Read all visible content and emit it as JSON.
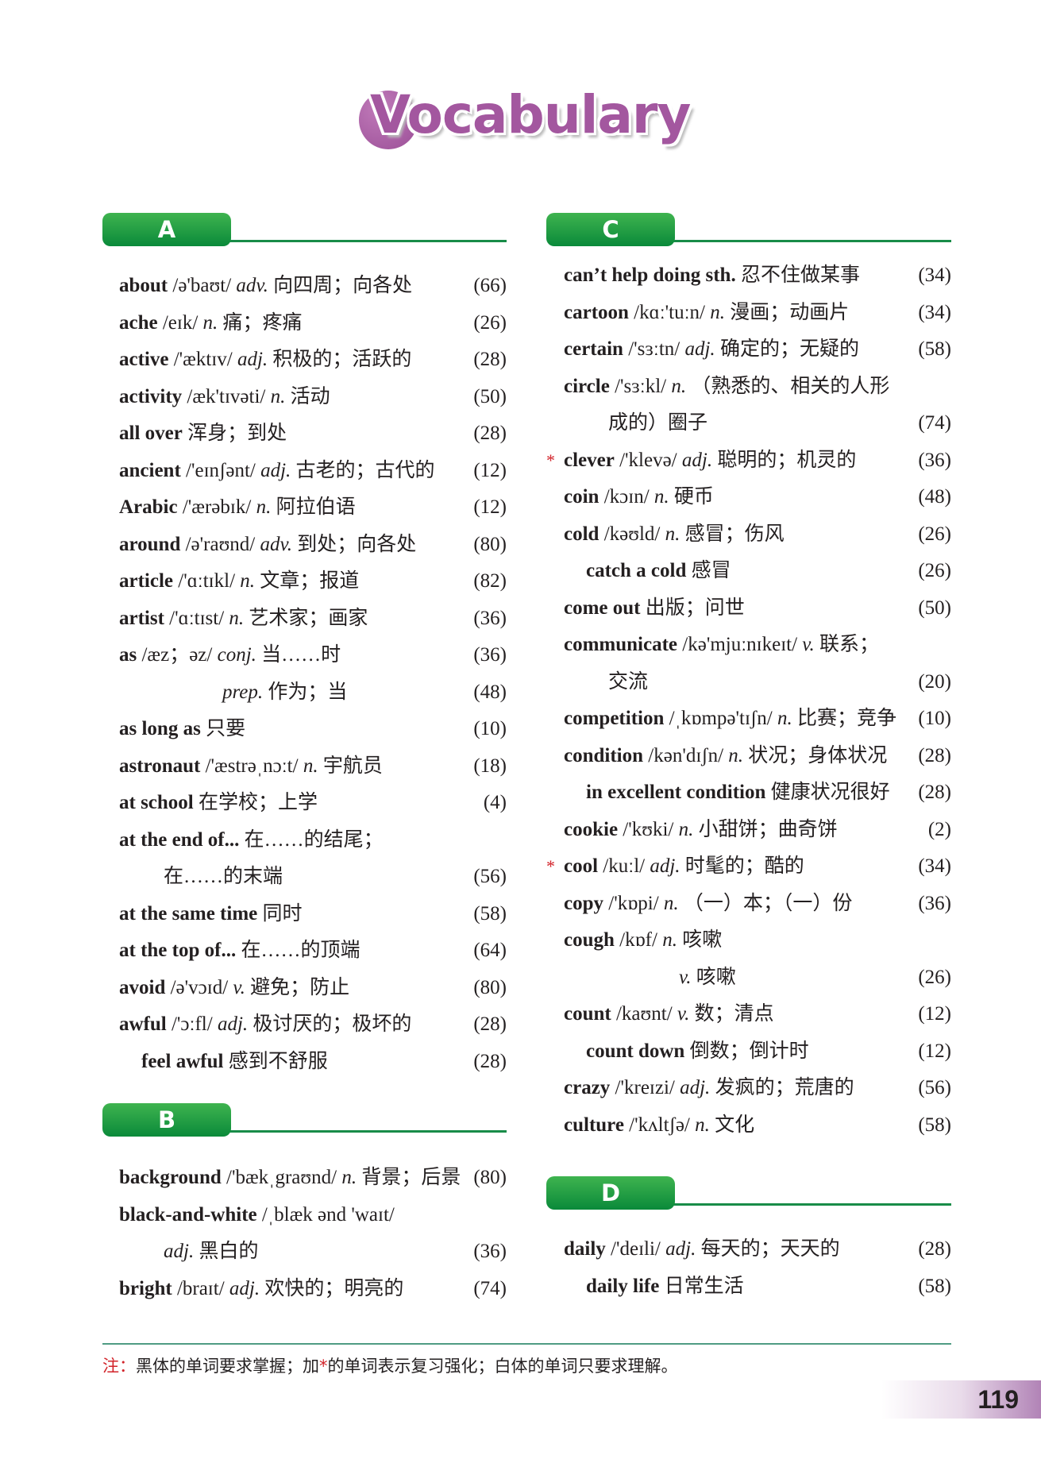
{
  "title": "Vocabulary",
  "colors": {
    "accent_purple": "#a3579f",
    "section_green": "#188c48",
    "star_red": "#d2232a"
  },
  "columns": [
    {
      "sections": [
        {
          "letter": "A",
          "entries": [
            {
              "kind": "entry",
              "word": "about",
              "phon": "/ə'baʊt/",
              "pos": "adv.",
              "def": "向四周；向各处",
              "page": "(66)"
            },
            {
              "kind": "entry",
              "word": "ache",
              "phon": "/eɪk/",
              "pos": "n.",
              "def": "痛；疼痛",
              "page": "(26)"
            },
            {
              "kind": "entry",
              "word": "active",
              "phon": "/'æktɪv/",
              "pos": "adj.",
              "def": "积极的；活跃的",
              "page": "(28)"
            },
            {
              "kind": "entry",
              "word": "activity",
              "phon": "/æk'tɪvəti/",
              "pos": "n.",
              "def": "活动",
              "page": "(50)"
            },
            {
              "kind": "entry",
              "word": "all over",
              "phon": "",
              "pos": "",
              "def": "浑身；到处",
              "page": "(28)"
            },
            {
              "kind": "entry",
              "word": "ancient",
              "phon": "/'eɪnʃənt/",
              "pos": "adj.",
              "def": "古老的；古代的",
              "page": "(12)"
            },
            {
              "kind": "entry",
              "word": "Arabic",
              "phon": "/'ærəbɪk/",
              "pos": "n.",
              "def": "阿拉伯语",
              "page": "(12)"
            },
            {
              "kind": "entry",
              "word": "around",
              "phon": "/ə'raʊnd/",
              "pos": "adv.",
              "def": "到处；向各处",
              "page": "(80)"
            },
            {
              "kind": "entry",
              "word": "article",
              "phon": "/'ɑːtɪkl/",
              "pos": "n.",
              "def": "文章；报道",
              "page": "(82)"
            },
            {
              "kind": "entry",
              "word": "artist",
              "phon": "/'ɑːtɪst/",
              "pos": "n.",
              "def": "艺术家；画家",
              "page": "(36)"
            },
            {
              "kind": "entry",
              "word": "as",
              "phon": "/æz；əz/",
              "pos": "conj.",
              "def": "当……时",
              "page": "(36)"
            },
            {
              "kind": "prep",
              "word": "",
              "phon": "",
              "pos": "prep.",
              "def": "作为；当",
              "page": "(48)"
            },
            {
              "kind": "entry",
              "word": "as long as",
              "phon": "",
              "pos": "",
              "def": "只要",
              "page": "(10)"
            },
            {
              "kind": "entry",
              "word": "astronaut",
              "phon": "/'æstrəˌnɔːt/",
              "pos": "n.",
              "def": "宇航员",
              "page": "(18)"
            },
            {
              "kind": "entry",
              "word": "at school",
              "phon": "",
              "pos": "",
              "def": "在学校；上学",
              "page": "(4)"
            },
            {
              "kind": "entry",
              "word": "at the end of...",
              "phon": "",
              "pos": "",
              "def": "在……的结尾；",
              "page": ""
            },
            {
              "kind": "cont",
              "word": "",
              "phon": "",
              "pos": "",
              "def": "在……的末端",
              "page": "(56)"
            },
            {
              "kind": "entry",
              "word": "at the same time",
              "phon": "",
              "pos": "",
              "def": "同时",
              "page": "(58)"
            },
            {
              "kind": "entry",
              "word": "at the top of...",
              "phon": "",
              "pos": "",
              "def": "在……的顶端",
              "page": "(64)"
            },
            {
              "kind": "entry",
              "word": "avoid",
              "phon": "/ə'vɔɪd/",
              "pos": "v.",
              "def": "避免；防止",
              "page": "(80)"
            },
            {
              "kind": "entry",
              "word": "awful",
              "phon": "/'ɔːfl/",
              "pos": "adj.",
              "def": "极讨厌的；极坏的",
              "page": "(28)"
            },
            {
              "kind": "sub",
              "word": "feel awful",
              "phon": "",
              "pos": "",
              "def": "感到不舒服",
              "page": "(28)"
            }
          ]
        },
        {
          "letter": "B",
          "entries": [
            {
              "kind": "entry",
              "word": "background",
              "phon": "/'bækˌgraʊnd/",
              "pos": "n.",
              "def": "背景；后景",
              "page": "(80)"
            },
            {
              "kind": "entry",
              "word": "black-and-white",
              "phon": "/ˌblæk ənd 'waɪt/",
              "pos": "",
              "def": "",
              "page": ""
            },
            {
              "kind": "cont",
              "word": "",
              "phon": "",
              "pos": "adj.",
              "def": "黑白的",
              "page": "(36)"
            },
            {
              "kind": "entry",
              "word": "bright",
              "phon": "/braɪt/",
              "pos": "adj.",
              "def": "欢快的；明亮的",
              "page": "(74)"
            }
          ]
        }
      ]
    },
    {
      "sections": [
        {
          "letter": "C",
          "entries": [
            {
              "kind": "entry",
              "word": "can’t help doing sth.",
              "phon": "",
              "pos": "",
              "def": "忍不住做某事",
              "page": "(34)"
            },
            {
              "kind": "entry",
              "word": "cartoon",
              "phon": "/kɑː'tuːn/",
              "pos": "n.",
              "def": "漫画；动画片",
              "page": "(34)"
            },
            {
              "kind": "entry",
              "word": "certain",
              "phon": "/'sɜːtn/",
              "pos": "adj.",
              "def": "确定的；无疑的",
              "page": "(58)"
            },
            {
              "kind": "entry",
              "word": "circle",
              "phon": "/'sɜːkl/",
              "pos": "n.",
              "def": "（熟悉的、相关的人形",
              "page": ""
            },
            {
              "kind": "cont",
              "word": "",
              "phon": "",
              "pos": "",
              "def": "成的）圈子",
              "page": "(74)"
            },
            {
              "kind": "entry",
              "star": true,
              "word": "clever",
              "phon": "/'klevə/",
              "pos": "adj.",
              "def": "聪明的；机灵的",
              "page": "(36)"
            },
            {
              "kind": "entry",
              "word": "coin",
              "phon": "/kɔɪn/",
              "pos": "n.",
              "def": "硬币",
              "page": "(48)"
            },
            {
              "kind": "entry",
              "word": "cold",
              "phon": "/kəʊld/",
              "pos": "n.",
              "def": "感冒；伤风",
              "page": "(26)"
            },
            {
              "kind": "sub",
              "word": "catch a cold",
              "phon": "",
              "pos": "",
              "def": "感冒",
              "page": "(26)"
            },
            {
              "kind": "entry",
              "word": "come out",
              "phon": "",
              "pos": "",
              "def": "出版；问世",
              "page": "(50)"
            },
            {
              "kind": "entry",
              "word": "communicate",
              "phon": "/kə'mjuːnɪkeɪt/",
              "pos": "v.",
              "def": "联系；",
              "page": ""
            },
            {
              "kind": "cont",
              "word": "",
              "phon": "",
              "pos": "",
              "def": "交流",
              "page": "(20)"
            },
            {
              "kind": "entry",
              "word": "competition",
              "phon": "/ˌkɒmpə'tɪʃn/",
              "pos": "n.",
              "def": "比赛；竞争",
              "page": "(10)"
            },
            {
              "kind": "entry",
              "word": "condition",
              "phon": "/kən'dɪʃn/",
              "pos": "n.",
              "def": "状况；身体状况",
              "page": "(28)"
            },
            {
              "kind": "sub",
              "word": "in excellent condition",
              "phon": "",
              "pos": "",
              "def": "健康状况很好",
              "page": "(28)"
            },
            {
              "kind": "entry",
              "word": "cookie",
              "phon": "/'kʊki/",
              "pos": "n.",
              "def": "小甜饼；曲奇饼",
              "page": "(2)"
            },
            {
              "kind": "entry",
              "star": true,
              "word": "cool",
              "phon": "/kuːl/",
              "pos": "adj.",
              "def": "时髦的；酷的",
              "page": "(34)"
            },
            {
              "kind": "entry",
              "word": "copy",
              "phon": "/'kɒpi/",
              "pos": "n.",
              "def": "（一）本；（一）份",
              "page": "(36)"
            },
            {
              "kind": "entry",
              "word": "cough",
              "phon": "/kɒf/",
              "pos": "n.",
              "def": "咳嗽",
              "page": ""
            },
            {
              "kind": "v",
              "word": "",
              "phon": "",
              "pos": "v.",
              "def": "咳嗽",
              "page": "(26)"
            },
            {
              "kind": "entry",
              "word": "count",
              "phon": "/kaʊnt/",
              "pos": "v.",
              "def": "数；清点",
              "page": "(12)"
            },
            {
              "kind": "sub",
              "word": "count down",
              "phon": "",
              "pos": "",
              "def": "倒数；倒计时",
              "page": "(12)"
            },
            {
              "kind": "entry",
              "word": "crazy",
              "phon": "/'kreɪzi/",
              "pos": "adj.",
              "def": "发疯的；荒唐的",
              "page": "(56)"
            },
            {
              "kind": "entry",
              "word": "culture",
              "phon": "/'kʌltʃə/",
              "pos": "n.",
              "def": "文化",
              "page": "(58)"
            }
          ]
        },
        {
          "letter": "D",
          "entries": [
            {
              "kind": "entry",
              "word": "daily",
              "phon": "/'deɪli/",
              "pos": "adj.",
              "def": "每天的；天天的",
              "page": "(28)"
            },
            {
              "kind": "sub",
              "word": "daily life",
              "phon": "",
              "pos": "",
              "def": "日常生活",
              "page": "(58)"
            }
          ]
        }
      ]
    }
  ],
  "footer": {
    "note_label": "注：",
    "note_part1": "黑体的单词要求掌握；加",
    "note_star": "*",
    "note_part2": "的单词表示复习强化；白体的单词只要求理解。",
    "page_number": "119"
  }
}
